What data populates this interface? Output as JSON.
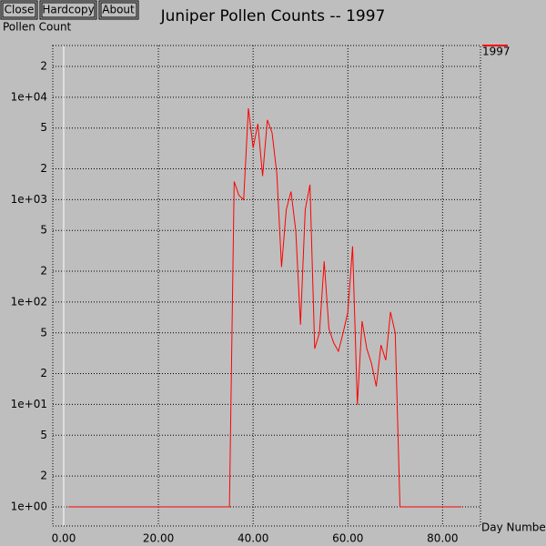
{
  "buttons": [
    "Close",
    "Hardcopy",
    "About"
  ],
  "chart_data": {
    "type": "line",
    "title": "Juniper Pollen Counts -- 1997",
    "y_label": "Pollen Count",
    "x_label": "Day Number",
    "x": [
      1,
      2,
      3,
      4,
      5,
      6,
      7,
      8,
      9,
      10,
      11,
      12,
      13,
      14,
      15,
      16,
      17,
      18,
      19,
      20,
      21,
      22,
      23,
      24,
      25,
      26,
      27,
      28,
      29,
      30,
      31,
      32,
      33,
      34,
      35,
      36,
      37,
      38,
      39,
      40,
      41,
      42,
      43,
      44,
      45,
      46,
      47,
      48,
      49,
      50,
      51,
      52,
      53,
      54,
      55,
      56,
      57,
      58,
      59,
      60,
      61,
      62,
      63,
      64,
      65,
      66,
      67,
      68,
      69,
      70,
      71,
      72,
      73,
      74,
      75,
      76,
      77,
      78,
      79,
      80,
      81,
      82,
      83,
      84
    ],
    "series": [
      {
        "name": "1997",
        "color": "#ff0000",
        "values": [
          1,
          1,
          1,
          1,
          1,
          1,
          1,
          1,
          1,
          1,
          1,
          1,
          1,
          1,
          1,
          1,
          1,
          1,
          1,
          1,
          1,
          1,
          1,
          1,
          1,
          1,
          1,
          1,
          1,
          1,
          1,
          1,
          1,
          1,
          1,
          1500,
          1100,
          1000,
          7800,
          3200,
          5500,
          1700,
          6000,
          4500,
          1800,
          220,
          800,
          1200,
          500,
          60,
          800,
          1400,
          35,
          50,
          250,
          55,
          40,
          33,
          50,
          80,
          350,
          10,
          65,
          35,
          25,
          15,
          38,
          27,
          80,
          50,
          1,
          1,
          1,
          1,
          1,
          1,
          1,
          1,
          1,
          1,
          1,
          1,
          1,
          1
        ]
      }
    ],
    "log_y": true,
    "grid": true,
    "legend": "top-right",
    "xlim": [
      -2.3,
      88
    ],
    "ylim": [
      0.65,
      32000
    ],
    "xticks": [
      {
        "value": 0,
        "label": "0.00"
      },
      {
        "value": 20,
        "label": "20.00"
      },
      {
        "value": 40,
        "label": "40.00"
      },
      {
        "value": 60,
        "label": "60.00"
      },
      {
        "value": 80,
        "label": "80.00"
      }
    ],
    "yticks": [
      {
        "value": 1,
        "label": "1e+00"
      },
      2,
      5,
      {
        "value": 10,
        "label": "1e+01"
      },
      {
        "value": 20,
        "label": "2"
      },
      {
        "value": 50,
        "label": "5"
      },
      {
        "value": 100,
        "label": "1e+02"
      },
      {
        "value": 200,
        "label": "2"
      },
      {
        "value": 500,
        "label": "5"
      },
      {
        "value": 1000,
        "label": "1e+03"
      },
      {
        "value": 2000,
        "label": "2"
      },
      {
        "value": 5000,
        "label": "5"
      },
      {
        "value": 10000,
        "label": "1e+04"
      },
      {
        "value": 20000,
        "label": "2"
      }
    ]
  }
}
